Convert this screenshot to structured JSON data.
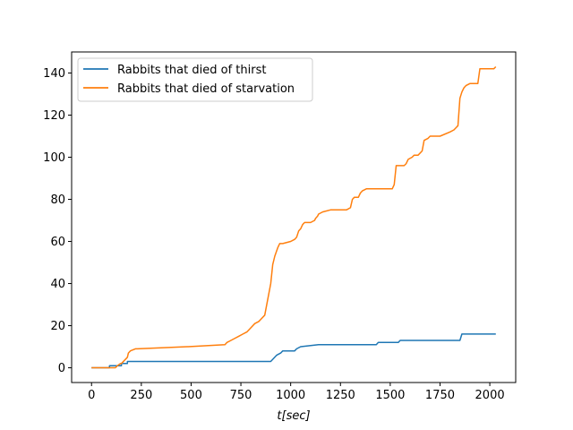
{
  "chart_data": {
    "type": "line",
    "title": "",
    "xlabel": "t[sec]",
    "ylabel": "",
    "xlim": [
      -100,
      2130
    ],
    "ylim": [
      -7,
      150
    ],
    "xticks": [
      0,
      250,
      500,
      750,
      1000,
      1250,
      1500,
      1750,
      2000
    ],
    "yticks": [
      0,
      20,
      40,
      60,
      80,
      100,
      120,
      140
    ],
    "grid": false,
    "legend_position": "upper-left",
    "series": [
      {
        "name": "Rabbits that died of thirst",
        "color": "#1f77b4",
        "x": [
          0,
          90,
          90,
          150,
          150,
          180,
          180,
          900,
          930,
          950,
          960,
          1020,
          1030,
          1050,
          1140,
          1430,
          1440,
          1540,
          1550,
          1850,
          1860,
          2030
        ],
        "y": [
          0,
          0,
          1,
          1,
          2,
          2,
          3,
          3,
          6,
          7,
          8,
          8,
          9,
          10,
          11,
          11,
          12,
          12,
          13,
          13,
          16,
          16
        ]
      },
      {
        "name": "Rabbits that died of starvation",
        "color": "#ff7f0e",
        "x": [
          0,
          120,
          130,
          145,
          150,
          180,
          185,
          195,
          220,
          230,
          480,
          485,
          670,
          680,
          700,
          720,
          740,
          760,
          780,
          800,
          820,
          840,
          850,
          870,
          900,
          910,
          920,
          935,
          945,
          960,
          1000,
          1020,
          1030,
          1040,
          1050,
          1060,
          1070,
          1080,
          1100,
          1120,
          1125,
          1135,
          1140,
          1160,
          1200,
          1280,
          1300,
          1310,
          1320,
          1340,
          1350,
          1360,
          1380,
          1420,
          1510,
          1520,
          1530,
          1570,
          1580,
          1590,
          1610,
          1620,
          1640,
          1660,
          1670,
          1690,
          1700,
          1750,
          1800,
          1820,
          1830,
          1840,
          1850,
          1860,
          1870,
          1880,
          1900,
          1940,
          1950,
          2020,
          2030
        ],
        "y": [
          0,
          0,
          1,
          2,
          2,
          5,
          7,
          8,
          9,
          9,
          10,
          10,
          11,
          12,
          13,
          14,
          15,
          16,
          17,
          19,
          21,
          22,
          23,
          25,
          40,
          49,
          53,
          57,
          59,
          59,
          60,
          61,
          62,
          65,
          66,
          68,
          69,
          69,
          69,
          70,
          71,
          72,
          73,
          74,
          75,
          75,
          76,
          80,
          81,
          81,
          83,
          84,
          85,
          85,
          85,
          87,
          96,
          96,
          97,
          99,
          100,
          101,
          101,
          103,
          108,
          109,
          110,
          110,
          112,
          113,
          114,
          115,
          128,
          131,
          133,
          134,
          135,
          135,
          142,
          142,
          143
        ]
      }
    ]
  }
}
